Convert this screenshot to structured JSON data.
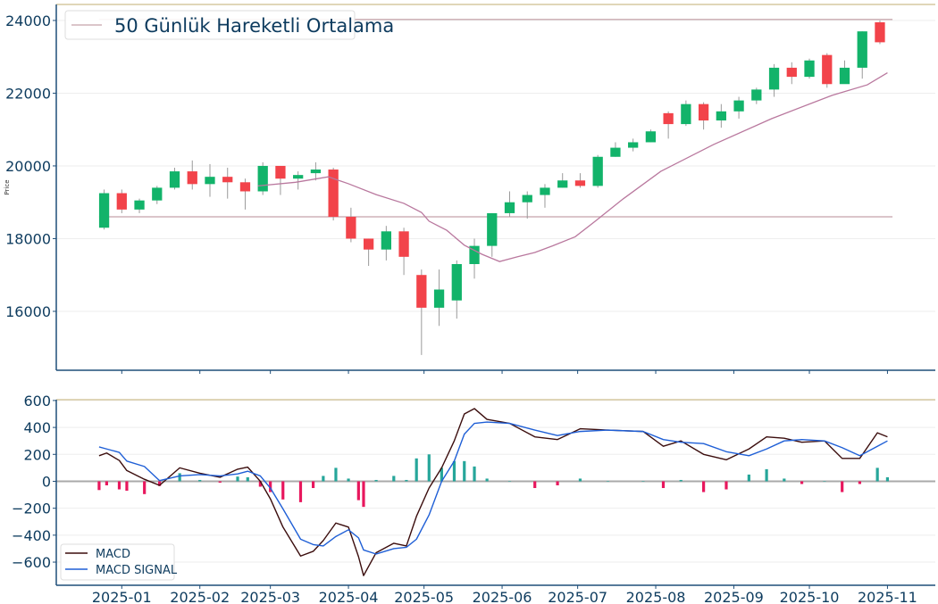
{
  "colors": {
    "up": "#12b36a",
    "down": "#f2434a",
    "wick": "#9a9a9a",
    "ma": "#b9789e",
    "hline": "#cfb2b8",
    "macd": "#3b0d0d",
    "signal": "#1f5fd6",
    "hist_pos": "#26a69a",
    "hist_neg": "#e8175d",
    "text": "#0d3b5e",
    "spine": "#1f4e79",
    "top_border": "#d6c9a0",
    "grid": "#eeeeee"
  },
  "chart_data": [
    {
      "type": "candlestick",
      "ylabel": "Price",
      "ylim": [
        14380,
        24440
      ],
      "xlim": [
        "2024-12-06",
        "2025-11-20"
      ],
      "yticks": [
        16000,
        18000,
        20000,
        22000,
        24000
      ],
      "grid": true,
      "legend": {
        "position": "top-left",
        "entries": [
          {
            "label": "50 Günlük Hareketli Ortalama"
          }
        ]
      },
      "candles": [
        {
          "date": "2024-12-23",
          "o": 18300,
          "h": 19350,
          "l": 18250,
          "c": 19250
        },
        {
          "date": "2024-12-30",
          "o": 19250,
          "h": 19350,
          "l": 18700,
          "c": 18800
        },
        {
          "date": "2025-01-06",
          "o": 18800,
          "h": 19100,
          "l": 18700,
          "c": 19050
        },
        {
          "date": "2025-01-13",
          "o": 19050,
          "h": 19450,
          "l": 18950,
          "c": 19400
        },
        {
          "date": "2025-01-20",
          "o": 19400,
          "h": 19950,
          "l": 19350,
          "c": 19850
        },
        {
          "date": "2025-01-27",
          "o": 19850,
          "h": 20150,
          "l": 19350,
          "c": 19500
        },
        {
          "date": "2025-02-03",
          "o": 19500,
          "h": 20050,
          "l": 19150,
          "c": 19700
        },
        {
          "date": "2025-02-10",
          "o": 19700,
          "h": 19950,
          "l": 19100,
          "c": 19550
        },
        {
          "date": "2025-02-17",
          "o": 19550,
          "h": 19650,
          "l": 18800,
          "c": 19300
        },
        {
          "date": "2025-02-24",
          "o": 19300,
          "h": 20100,
          "l": 19200,
          "c": 20000
        },
        {
          "date": "2025-03-03",
          "o": 20000,
          "h": 20000,
          "l": 19200,
          "c": 19650
        },
        {
          "date": "2025-03-10",
          "o": 19650,
          "h": 19850,
          "l": 19350,
          "c": 19750
        },
        {
          "date": "2025-03-17",
          "o": 19800,
          "h": 20100,
          "l": 19600,
          "c": 19900
        },
        {
          "date": "2025-03-24",
          "o": 19900,
          "h": 19950,
          "l": 18500,
          "c": 18600
        },
        {
          "date": "2025-03-31",
          "o": 18600,
          "h": 18850,
          "l": 17900,
          "c": 18000
        },
        {
          "date": "2025-04-07",
          "o": 18000,
          "h": 18000,
          "l": 17250,
          "c": 17700
        },
        {
          "date": "2025-04-14",
          "o": 17700,
          "h": 18350,
          "l": 17400,
          "c": 18200
        },
        {
          "date": "2025-04-21",
          "o": 18200,
          "h": 18300,
          "l": 17000,
          "c": 17500
        },
        {
          "date": "2025-04-28",
          "o": 17000,
          "h": 17150,
          "l": 14800,
          "c": 16100
        },
        {
          "date": "2025-05-05",
          "o": 16100,
          "h": 17150,
          "l": 15600,
          "c": 16600
        },
        {
          "date": "2025-05-12",
          "o": 16300,
          "h": 17400,
          "l": 15800,
          "c": 17300
        },
        {
          "date": "2025-05-19",
          "o": 17300,
          "h": 18000,
          "l": 16900,
          "c": 17800
        },
        {
          "date": "2025-05-26",
          "o": 17800,
          "h": 18700,
          "l": 17500,
          "c": 18700
        },
        {
          "date": "2025-06-02",
          "o": 18700,
          "h": 19300,
          "l": 18600,
          "c": 19000
        },
        {
          "date": "2025-06-09",
          "o": 19000,
          "h": 19300,
          "l": 18550,
          "c": 19200
        },
        {
          "date": "2025-06-16",
          "o": 19200,
          "h": 19500,
          "l": 18850,
          "c": 19400
        },
        {
          "date": "2025-06-23",
          "o": 19400,
          "h": 19800,
          "l": 19400,
          "c": 19600
        },
        {
          "date": "2025-06-30",
          "o": 19600,
          "h": 19800,
          "l": 19400,
          "c": 19450
        },
        {
          "date": "2025-07-07",
          "o": 19450,
          "h": 20300,
          "l": 19400,
          "c": 20250
        },
        {
          "date": "2025-07-14",
          "o": 20250,
          "h": 20650,
          "l": 20250,
          "c": 20500
        },
        {
          "date": "2025-07-21",
          "o": 20500,
          "h": 20750,
          "l": 20400,
          "c": 20650
        },
        {
          "date": "2025-07-28",
          "o": 20650,
          "h": 21000,
          "l": 20650,
          "c": 20950
        },
        {
          "date": "2025-08-04",
          "o": 21450,
          "h": 21500,
          "l": 20750,
          "c": 21150
        },
        {
          "date": "2025-08-11",
          "o": 21150,
          "h": 21800,
          "l": 21100,
          "c": 21700
        },
        {
          "date": "2025-08-18",
          "o": 21700,
          "h": 21750,
          "l": 21000,
          "c": 21250
        },
        {
          "date": "2025-08-25",
          "o": 21250,
          "h": 21700,
          "l": 21050,
          "c": 21500
        },
        {
          "date": "2025-09-01",
          "o": 21500,
          "h": 21900,
          "l": 21300,
          "c": 21800
        },
        {
          "date": "2025-09-08",
          "o": 21800,
          "h": 22150,
          "l": 21700,
          "c": 22100
        },
        {
          "date": "2025-09-15",
          "o": 22100,
          "h": 22800,
          "l": 21900,
          "c": 22700
        },
        {
          "date": "2025-09-22",
          "o": 22700,
          "h": 22850,
          "l": 22250,
          "c": 22450
        },
        {
          "date": "2025-09-29",
          "o": 22450,
          "h": 22950,
          "l": 22400,
          "c": 22900
        },
        {
          "date": "2025-10-06",
          "o": 23050,
          "h": 23100,
          "l": 22150,
          "c": 22250
        },
        {
          "date": "2025-10-13",
          "o": 22250,
          "h": 22900,
          "l": 22300,
          "c": 22700
        },
        {
          "date": "2025-10-20",
          "o": 22700,
          "h": 23700,
          "l": 22400,
          "c": 23700
        },
        {
          "date": "2025-10-27",
          "o": 23950,
          "h": 24000,
          "l": 23350,
          "c": 23400
        }
      ],
      "moving_average_50": [
        [
          "2025-02-24",
          19450
        ],
        [
          "2025-03-11",
          19550
        ],
        [
          "2025-03-24",
          19700
        ],
        [
          "2025-04-01",
          19510
        ],
        [
          "2025-04-12",
          19210
        ],
        [
          "2025-04-23",
          18970
        ],
        [
          "2025-04-30",
          18720
        ],
        [
          "2025-05-03",
          18480
        ],
        [
          "2025-05-10",
          18230
        ],
        [
          "2025-05-17",
          17820
        ],
        [
          "2025-05-24",
          17570
        ],
        [
          "2025-05-31",
          17370
        ],
        [
          "2025-06-07",
          17500
        ],
        [
          "2025-06-14",
          17620
        ],
        [
          "2025-06-21",
          17800
        ],
        [
          "2025-06-30",
          18050
        ],
        [
          "2025-07-08",
          18480
        ],
        [
          "2025-07-19",
          19090
        ],
        [
          "2025-08-03",
          19850
        ],
        [
          "2025-08-24",
          20590
        ],
        [
          "2025-09-16",
          21300
        ],
        [
          "2025-10-10",
          21940
        ],
        [
          "2025-10-24",
          22230
        ],
        [
          "2025-11-01",
          22560
        ]
      ],
      "horizontal_lines": [
        {
          "value": 24030,
          "from": "2024-12-23",
          "to": "2025-11-03"
        },
        {
          "value": 18600,
          "from": "2024-12-23",
          "to": "2025-11-03"
        }
      ]
    },
    {
      "type": "line",
      "ylim": [
        -772,
        606
      ],
      "yticks": [
        -600,
        -400,
        -200,
        0,
        200,
        400,
        600
      ],
      "ytick_labels": [
        "−600",
        "−400",
        "−200",
        "0",
        "200",
        "400",
        "600"
      ],
      "xticks": [
        "2025-01-01",
        "2025-02-01",
        "2025-03-01",
        "2025-04-01",
        "2025-05-01",
        "2025-06-01",
        "2025-07-01",
        "2025-08-01",
        "2025-09-01",
        "2025-10-01",
        "2025-11-01"
      ],
      "xtick_labels": [
        "2025-01",
        "2025-02",
        "2025-03",
        "2025-04",
        "2025-05",
        "2025-06",
        "2025-07",
        "2025-08",
        "2025-09",
        "2025-10",
        "2025-11"
      ],
      "grid": true,
      "legend": {
        "position": "bottom-left"
      },
      "dates": [
        "2024-12-23",
        "2024-12-26",
        "2024-12-31",
        "2025-01-03",
        "2025-01-10",
        "2025-01-16",
        "2025-01-24",
        "2025-02-01",
        "2025-02-09",
        "2025-02-16",
        "2025-02-20",
        "2025-02-25",
        "2025-03-01",
        "2025-03-06",
        "2025-03-13",
        "2025-03-18",
        "2025-03-22",
        "2025-03-27",
        "2025-04-01",
        "2025-04-05",
        "2025-04-07",
        "2025-04-12",
        "2025-04-19",
        "2025-04-24",
        "2025-04-28",
        "2025-05-03",
        "2025-05-08",
        "2025-05-13",
        "2025-05-17",
        "2025-05-21",
        "2025-05-26",
        "2025-06-04",
        "2025-06-14",
        "2025-06-23",
        "2025-07-02",
        "2025-07-13",
        "2025-07-27",
        "2025-08-04",
        "2025-08-11",
        "2025-08-20",
        "2025-08-29",
        "2025-09-07",
        "2025-09-14",
        "2025-09-21",
        "2025-09-28",
        "2025-10-07",
        "2025-10-14",
        "2025-10-21",
        "2025-10-28",
        "2025-11-01"
      ],
      "series": [
        {
          "name": "MACD",
          "values": [
            190,
            210,
            155,
            80,
            15,
            -30,
            100,
            60,
            30,
            90,
            105,
            0,
            -130,
            -340,
            -555,
            -520,
            -440,
            -310,
            -340,
            -560,
            -700,
            -530,
            -460,
            -480,
            -260,
            -50,
            100,
            300,
            500,
            540,
            460,
            430,
            330,
            310,
            390,
            380,
            370,
            260,
            300,
            200,
            160,
            240,
            330,
            320,
            290,
            300,
            170,
            170,
            360,
            330
          ]
        },
        {
          "name": "MACD SIGNAL",
          "values": [
            255,
            240,
            215,
            150,
            110,
            5,
            40,
            50,
            40,
            55,
            75,
            40,
            -50,
            -205,
            -430,
            -470,
            -480,
            -410,
            -360,
            -420,
            -510,
            -540,
            -500,
            -490,
            -430,
            -250,
            0,
            150,
            350,
            430,
            440,
            430,
            380,
            340,
            370,
            380,
            370,
            310,
            290,
            280,
            220,
            190,
            240,
            300,
            310,
            300,
            250,
            190,
            260,
            300
          ]
        }
      ],
      "histogram": [
        -65,
        -30,
        -60,
        -70,
        -95,
        -35,
        60,
        10,
        -10,
        35,
        30,
        -40,
        -80,
        -135,
        -155,
        -50,
        40,
        100,
        20,
        -140,
        -190,
        10,
        40,
        10,
        170,
        200,
        100,
        150,
        150,
        110,
        20,
        0,
        -50,
        -30,
        20,
        0,
        0,
        -50,
        10,
        -80,
        -60,
        50,
        90,
        20,
        -20,
        0,
        -80,
        -20,
        100,
        30
      ]
    }
  ]
}
